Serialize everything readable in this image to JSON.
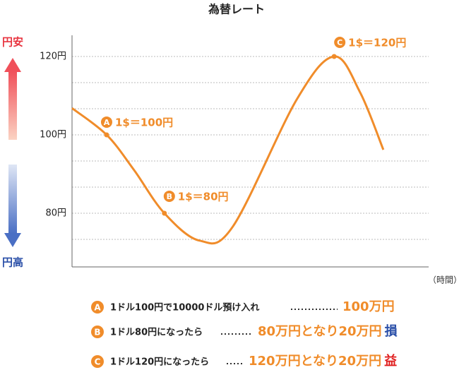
{
  "chart_data": {
    "type": "line",
    "title": "為替レート",
    "x_label": "（時間）",
    "y_up_label": "円安",
    "y_down_label": "円高",
    "xlim": [
      0,
      100
    ],
    "ylim": [
      66.3,
      125.4
    ],
    "yticks": [
      {
        "value": 80,
        "label": "80円"
      },
      {
        "value": 100,
        "label": "100円"
      },
      {
        "value": 120,
        "label": "120円"
      }
    ],
    "minor_yticks": [
      73.33,
      86.67,
      93.33,
      106.67,
      113.33
    ],
    "grid": true,
    "series": [
      {
        "name": null,
        "color": "#f08c2a",
        "x": [
          0,
          9.7,
          17.4,
          25.9,
          35.8,
          45.1,
          63.0,
          73.5,
          80.8,
          87.3
        ],
        "values": [
          106.8,
          100,
          91.0,
          80,
          73.0,
          76.6,
          109.0,
          120,
          110.8,
          96.2
        ]
      }
    ],
    "annotations": [
      {
        "marker": "A",
        "label": "1$＝100円",
        "x": 9.7,
        "value": 100
      },
      {
        "marker": "B",
        "label": "1$＝80円",
        "x": 25.9,
        "value": 80
      },
      {
        "marker": "C",
        "label": "1$＝120円",
        "x": 73.5,
        "value": 120
      }
    ],
    "notes": [
      {
        "marker": "A",
        "text": "1ドル100円で10000ドル預け入れ",
        "result": "100万円",
        "outcome": null
      },
      {
        "marker": "B",
        "text": "1ドル80円になったら",
        "result": "80万円となり20万円",
        "outcome": "損"
      },
      {
        "marker": "C",
        "text": "1ドル120円になったら",
        "result": "120万円となり20万円",
        "outcome": "益"
      }
    ]
  }
}
